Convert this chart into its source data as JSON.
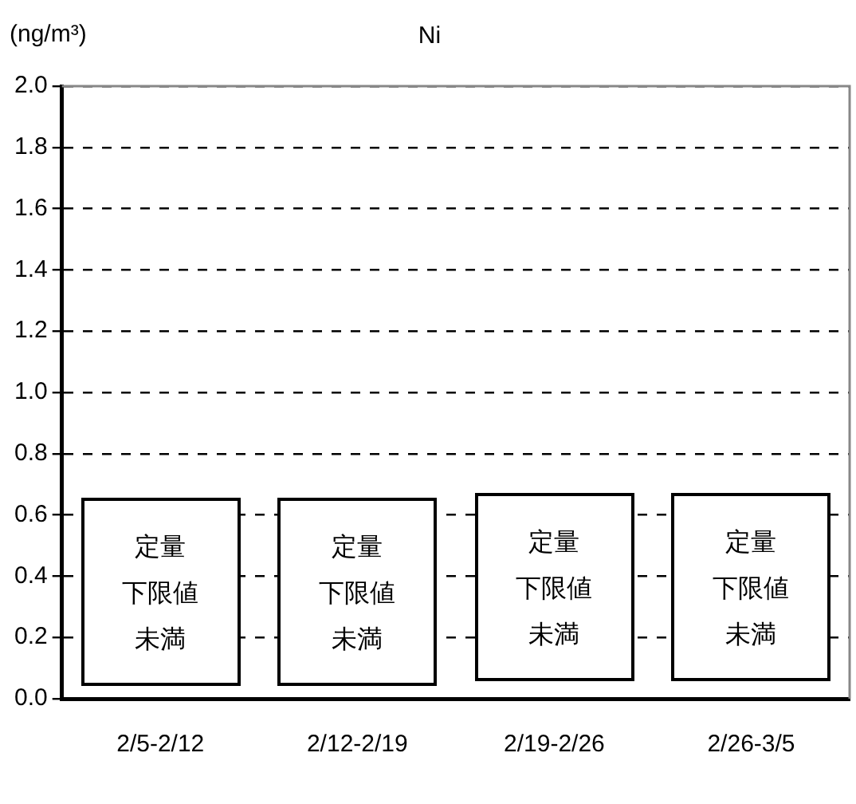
{
  "chart_data": {
    "type": "bar",
    "title": "Ni",
    "ylabel": "(ng/m³)",
    "categories": [
      "2/5-2/12",
      "2/12-2/19",
      "2/19-2/26",
      "2/26-3/5"
    ],
    "values": [
      null,
      null,
      null,
      null
    ],
    "ylim": [
      0,
      2
    ],
    "yticks": [
      {
        "value": 0,
        "label": "0.0"
      },
      {
        "value": 0.2,
        "label": "0.2"
      },
      {
        "value": 0.4,
        "label": "0.4"
      },
      {
        "value": 0.6,
        "label": "0.6"
      },
      {
        "value": 0.8,
        "label": "0.8"
      },
      {
        "value": 1,
        "label": "1.0"
      },
      {
        "value": 1.2,
        "label": "1.2"
      },
      {
        "value": 1.4,
        "label": "1.4"
      },
      {
        "value": 1.6,
        "label": "1.6"
      },
      {
        "value": 1.8,
        "label": "1.8"
      },
      {
        "value": 2,
        "label": "2.0"
      }
    ],
    "grid": "y",
    "legend": false,
    "annotations": [
      "定量下限値未満",
      "定量下限値未満",
      "定量下限値未満",
      "定量下限値未満"
    ]
  }
}
